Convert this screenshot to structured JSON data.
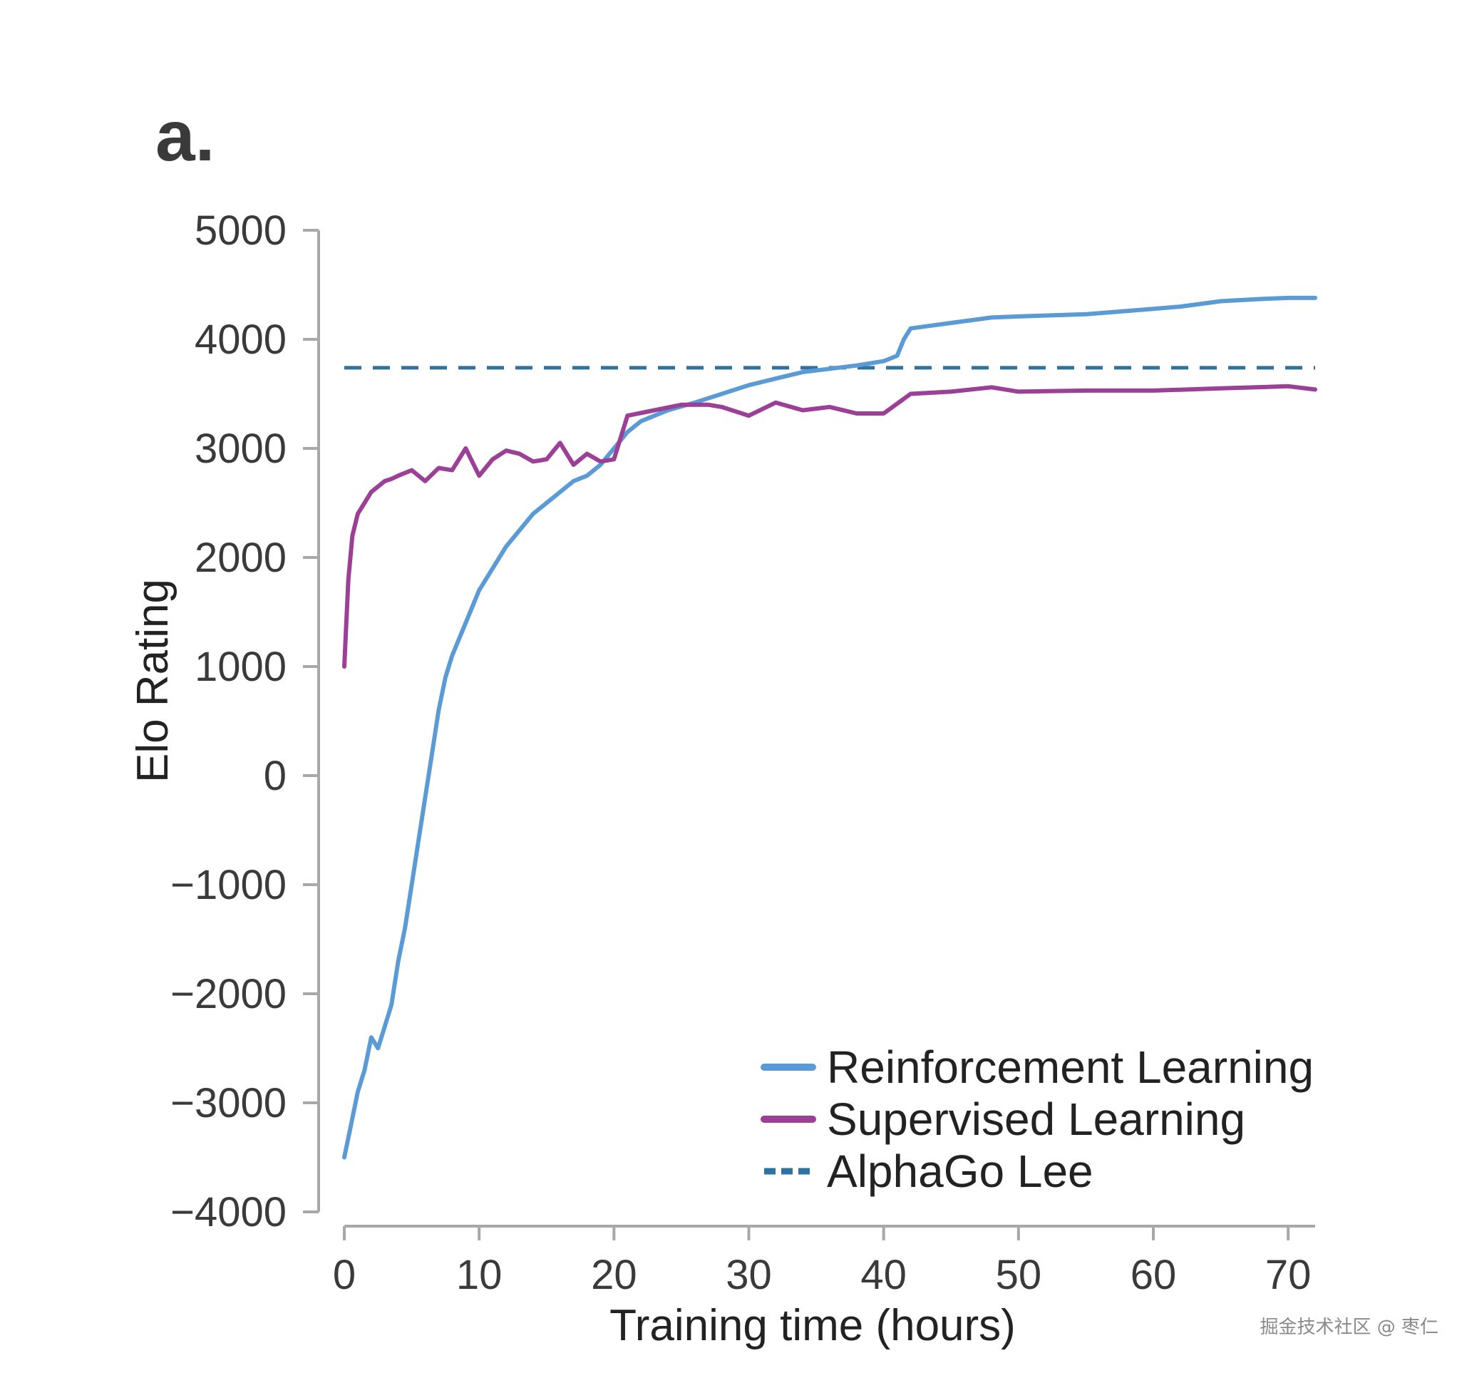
{
  "panel_label": "a.",
  "watermark": "掘金技术社区 @ 枣仁",
  "chart_data": {
    "type": "line",
    "title": "",
    "xlabel": "Training time (hours)",
    "ylabel": "Elo Rating",
    "xlim": [
      0,
      72
    ],
    "ylim": [
      -4000,
      5000
    ],
    "xticks": [
      0,
      10,
      20,
      30,
      40,
      50,
      60,
      70
    ],
    "yticks": [
      5000,
      4000,
      3000,
      2000,
      1000,
      0,
      -1000,
      -2000,
      -3000,
      -4000
    ],
    "xtick_labels": [
      "0",
      "10",
      "20",
      "30",
      "40",
      "50",
      "60",
      "70"
    ],
    "ytick_labels": [
      "5000",
      "4000",
      "3000",
      "2000",
      "1000",
      "0",
      "−1000",
      "−2000",
      "−3000",
      "−4000"
    ],
    "grid": false,
    "legend_position": "bottom-right",
    "series": [
      {
        "name": "Reinforcement Learning",
        "color": "#5b9bd5",
        "style": "solid",
        "x": [
          0,
          0.5,
          1,
          1.5,
          2,
          2.5,
          3,
          3.5,
          4,
          4.5,
          5,
          5.5,
          6,
          6.5,
          7,
          7.5,
          8,
          9,
          10,
          11,
          12,
          13,
          14,
          15,
          16,
          17,
          18,
          19,
          20,
          21,
          22,
          24,
          26,
          28,
          30,
          32,
          34,
          36,
          38,
          40,
          41,
          41.5,
          42,
          45,
          48,
          50,
          55,
          60,
          62,
          65,
          68,
          70,
          72
        ],
        "y": [
          -3500,
          -3200,
          -2900,
          -2700,
          -2400,
          -2500,
          -2300,
          -2100,
          -1700,
          -1400,
          -1000,
          -600,
          -200,
          200,
          600,
          900,
          1100,
          1400,
          1700,
          1900,
          2100,
          2250,
          2400,
          2500,
          2600,
          2700,
          2750,
          2850,
          3000,
          3150,
          3250,
          3350,
          3420,
          3500,
          3580,
          3640,
          3700,
          3730,
          3760,
          3800,
          3850,
          4000,
          4100,
          4150,
          4200,
          4210,
          4230,
          4280,
          4300,
          4350,
          4370,
          4380,
          4380
        ]
      },
      {
        "name": "Supervised Learning",
        "color": "#9c3f96",
        "style": "solid",
        "x": [
          0,
          0.3,
          0.6,
          1,
          1.5,
          2,
          2.5,
          3,
          3.5,
          4,
          5,
          6,
          7,
          8,
          9,
          10,
          11,
          12,
          13,
          14,
          15,
          16,
          17,
          18,
          19,
          20,
          21,
          23,
          25,
          27,
          28,
          30,
          32,
          34,
          36,
          38,
          40,
          42,
          45,
          48,
          50,
          55,
          60,
          65,
          70,
          72
        ],
        "y": [
          1000,
          1800,
          2200,
          2400,
          2500,
          2600,
          2650,
          2700,
          2720,
          2750,
          2800,
          2700,
          2820,
          2800,
          3000,
          2750,
          2900,
          2980,
          2950,
          2880,
          2900,
          3050,
          2850,
          2950,
          2880,
          2900,
          3300,
          3350,
          3400,
          3400,
          3380,
          3300,
          3420,
          3350,
          3380,
          3320,
          3320,
          3500,
          3520,
          3560,
          3520,
          3530,
          3530,
          3550,
          3570,
          3540
        ]
      },
      {
        "name": "AlphaGo Lee",
        "color": "#2e72a0",
        "style": "dashed",
        "x": [
          0,
          72
        ],
        "y": [
          3739,
          3739
        ]
      }
    ]
  }
}
